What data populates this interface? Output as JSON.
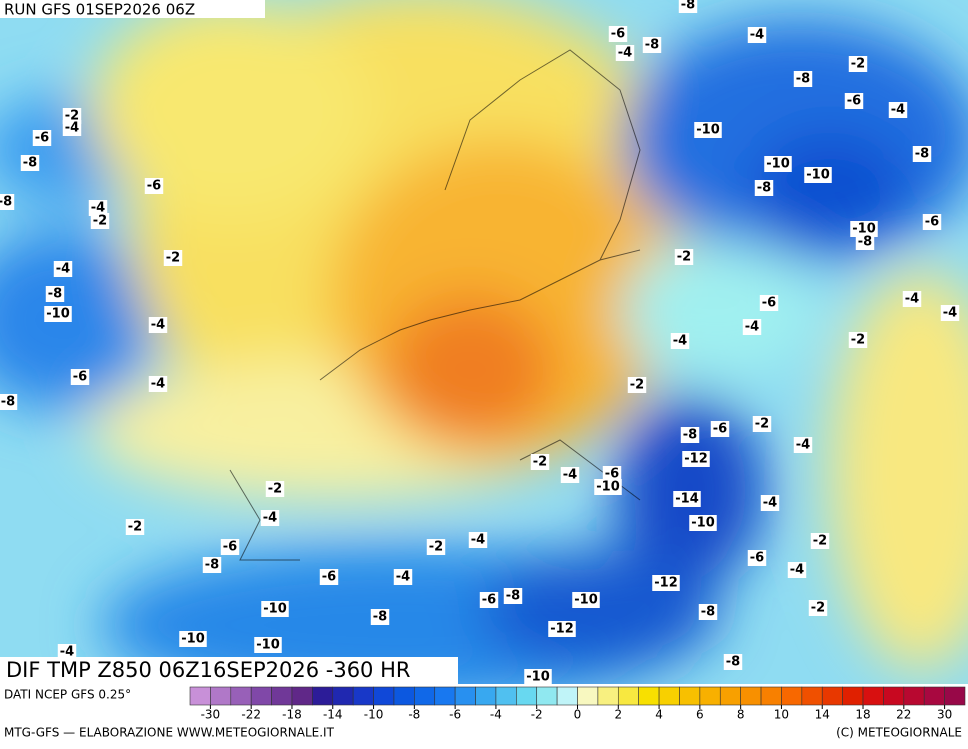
{
  "header": {
    "run": "RUN GFS 01SEP2026 06Z",
    "product": "DIF TMP Z850 06Z16SEP2026 -360 HR"
  },
  "map": {
    "contour_labels": [
      -8,
      -6,
      -8,
      -4,
      -4,
      -2,
      -8,
      -6,
      -4,
      -2,
      -4,
      -6,
      -10,
      -8,
      -8,
      -10,
      -10,
      -6,
      -8,
      -8,
      -4,
      -2,
      -10,
      -8,
      -6,
      -2,
      -2,
      -4,
      -8,
      -6,
      -4,
      -4,
      -10,
      -4,
      -4,
      -4,
      -2,
      -6,
      -4,
      -2,
      -8,
      -8,
      -6,
      -2,
      -4,
      -12,
      -2,
      -4,
      -6,
      -10,
      -2,
      -14,
      -4,
      -4,
      -2,
      -10,
      -6,
      -4,
      -2,
      -2,
      -8,
      -6,
      -4,
      -6,
      -4,
      -12,
      -8,
      -6,
      -10,
      -10,
      -2,
      -8,
      -8,
      -12,
      -10,
      -10,
      -4,
      -8,
      -10
    ]
  },
  "colorbar": {
    "colors": [
      "#c890d8",
      "#b078c8",
      "#9860b8",
      "#8048a8",
      "#703898",
      "#602888",
      "#2c1c98",
      "#2028b0",
      "#1838c8",
      "#1048d8",
      "#0c58e0",
      "#1068e8",
      "#1878f0",
      "#2890f0",
      "#38a8f0",
      "#50c0f0",
      "#68d8f0",
      "#90e8f0",
      "#c0f4f8",
      "#f8f8c0",
      "#f8f080",
      "#f8e840",
      "#f8e000",
      "#f8d000",
      "#f8c000",
      "#f8b000",
      "#f8a000",
      "#f89000",
      "#f88000",
      "#f86800",
      "#f05000",
      "#e83800",
      "#e02000",
      "#d81010",
      "#c80820",
      "#b80830",
      "#a80840",
      "#980848"
    ],
    "ticks": [
      -30,
      -22,
      -18,
      -14,
      -10,
      -8,
      -6,
      -4,
      -2,
      0,
      2,
      4,
      6,
      8,
      10,
      14,
      18,
      22,
      30
    ]
  },
  "footer": {
    "source": "DATI NCEP GFS 0.25°",
    "credit": "MTG-GFS — ELABORAZIONE WWW.METEOGIORNALE.IT",
    "copyright": "(C) METEOGIORNALE"
  }
}
